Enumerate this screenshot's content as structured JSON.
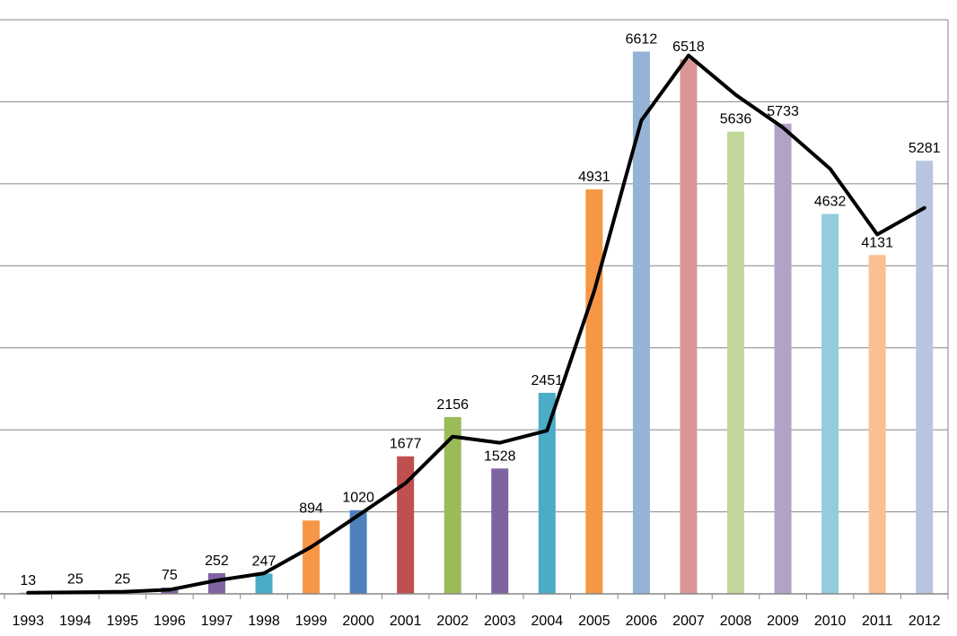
{
  "chart_data": {
    "type": "bar",
    "title": "",
    "xlabel": "",
    "ylabel": "",
    "ylim": [
      0,
      7000
    ],
    "grid": true,
    "legend": "none",
    "categories": [
      "1993",
      "1994",
      "1995",
      "1996",
      "1997",
      "1998",
      "1999",
      "2000",
      "2001",
      "2002",
      "2003",
      "2004",
      "2005",
      "2006",
      "2007",
      "2008",
      "2009",
      "2010",
      "2011",
      "2012"
    ],
    "series": [
      {
        "type": "bar",
        "values": [
          13,
          25,
          25,
          75,
          252,
          247,
          894,
          1020,
          1677,
          2156,
          1528,
          2451,
          4931,
          6612,
          6518,
          5636,
          5733,
          4632,
          4131,
          5281
        ],
        "colors": [
          "#4f81bd",
          "#c0504d",
          "#9bbb59",
          "#8064a2",
          "#8064a2",
          "#4bacc6",
          "#f79646",
          "#4f81bd",
          "#c0504d",
          "#9bbb59",
          "#8064a2",
          "#4bacc6",
          "#f79646",
          "#95b3d7",
          "#d99694",
          "#c3d69b",
          "#b3a2c7",
          "#93cddd",
          "#fac090",
          "#b9c5e0"
        ]
      },
      {
        "type": "line",
        "values": [
          13,
          19,
          25,
          50,
          164,
          250,
          571,
          957,
          1349,
          1917,
          1842,
          1990,
          3691,
          5772,
          6565,
          6085,
          5685,
          5183,
          4382,
          4706
        ],
        "color": "#000000"
      }
    ],
    "data_labels": [
      "13",
      "25",
      "25",
      "75",
      "252",
      "247",
      "894",
      "1020",
      "1677",
      "2156",
      "1528",
      "2451",
      "4931",
      "6612",
      "6518",
      "5636",
      "5733",
      "4632",
      "4131",
      "5281"
    ]
  }
}
